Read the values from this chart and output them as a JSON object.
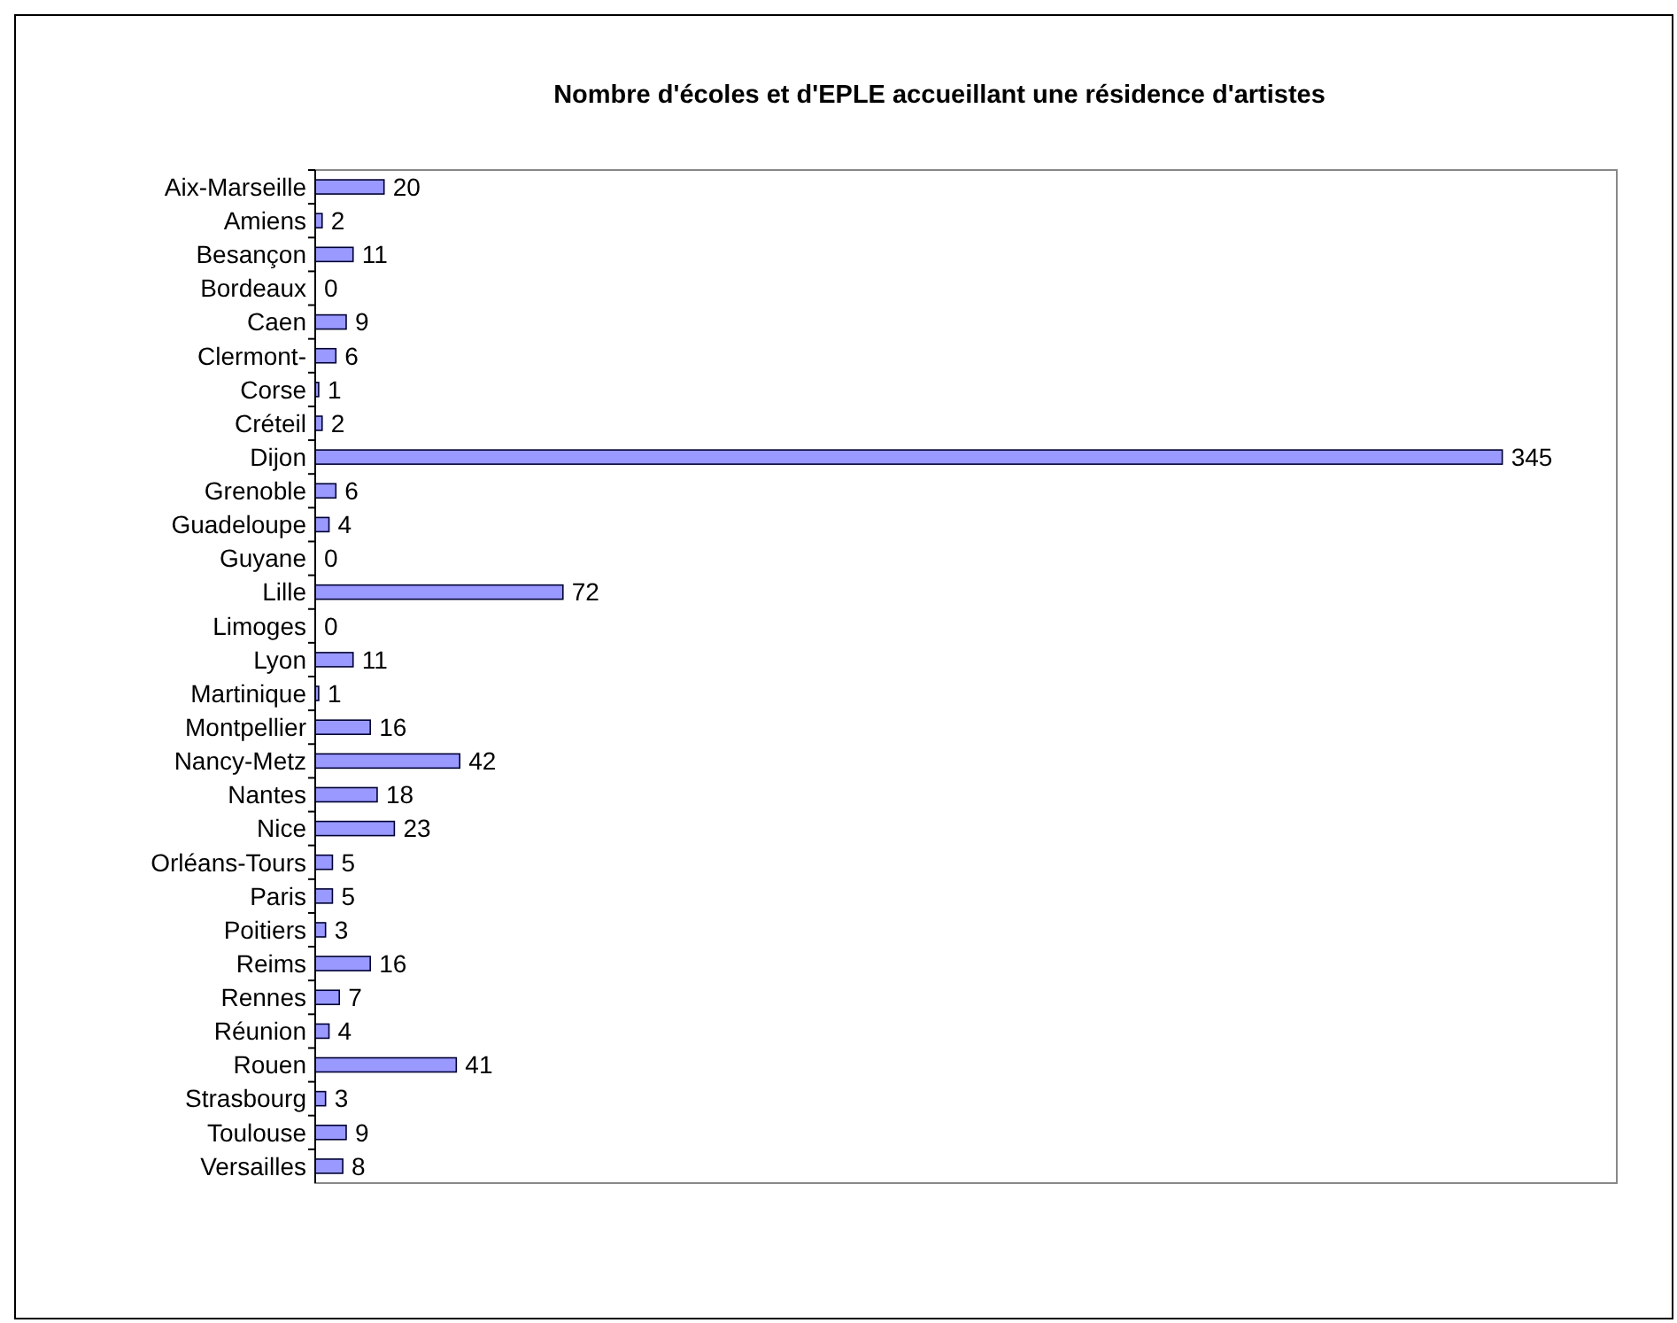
{
  "chart_data": {
    "type": "bar",
    "orientation": "horizontal",
    "title": "Nombre d'écoles et d'EPLE accueillant une résidence d'artistes",
    "categories": [
      "Aix-Marseille",
      "Amiens",
      "Besançon",
      "Bordeaux",
      "Caen",
      "Clermont-",
      "Corse",
      "Créteil",
      "Dijon",
      "Grenoble",
      "Guadeloupe",
      "Guyane",
      "Lille",
      "Limoges",
      "Lyon",
      "Martinique",
      "Montpellier",
      "Nancy-Metz",
      "Nantes",
      "Nice",
      "Orléans-Tours",
      "Paris",
      "Poitiers",
      "Reims",
      "Rennes",
      "Réunion",
      "Rouen",
      "Strasbourg",
      "Toulouse",
      "Versailles"
    ],
    "values": [
      20,
      2,
      11,
      0,
      9,
      6,
      1,
      2,
      345,
      6,
      4,
      0,
      72,
      0,
      11,
      1,
      16,
      42,
      18,
      23,
      5,
      5,
      3,
      16,
      7,
      4,
      41,
      3,
      9,
      8
    ],
    "color": "#9999ff",
    "data_labels": true
  }
}
